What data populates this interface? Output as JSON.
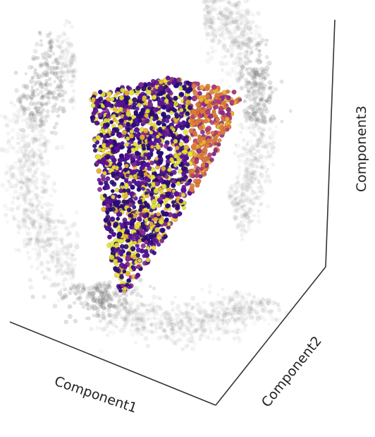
{
  "chart_data": {
    "type": "scatter",
    "projection": "3d",
    "xlabel": "Component1",
    "ylabel": "Component2",
    "zlabel": "Component3",
    "grid": false,
    "legend": "none",
    "tick_labels": "none",
    "point_colormap": [
      "#2a0a78",
      "#5b0f9c",
      "#8a2a8f",
      "#b23a7a",
      "#e07a3a",
      "#f2b02f",
      "#e8e432"
    ],
    "shadow_color": "#7a7a7a",
    "plane_projections": [
      "xy-floor",
      "xz-back",
      "yz-back"
    ]
  }
}
